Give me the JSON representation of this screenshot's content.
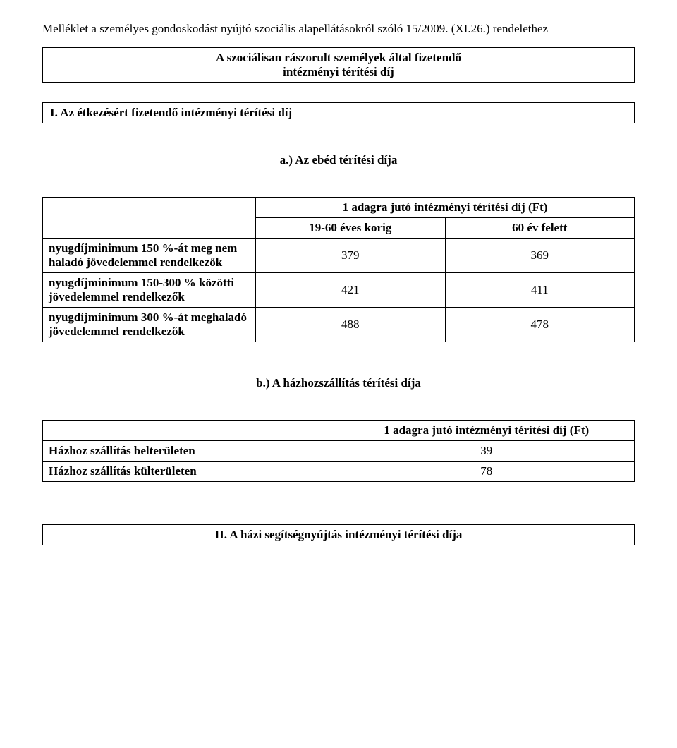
{
  "intro": {
    "line": "Melléklet a személyes gondoskodást nyújtó szociális alapellátásokról szóló 15/2009. (XI.26.) rendelethez"
  },
  "box_title": {
    "line1": "A szociálisan rászorult személyek által fizetendő",
    "line2": "intézményi térítési díj"
  },
  "section_i": {
    "title": "I. Az étkezésért fizetendő intézményi térítési díj"
  },
  "subsection_a": {
    "title": "a.) Az ebéd térítési díja"
  },
  "table_a": {
    "header_span": "1 adagra jutó intézményi térítési díj (Ft)",
    "col1": "19-60 éves korig",
    "col2": "60 év felett",
    "rows": [
      {
        "label": "nyugdíjminimum 150 %-át meg nem haladó jövedelemmel rendelkezők",
        "v1": "379",
        "v2": "369"
      },
      {
        "label": "nyugdíjminimum 150-300 % közötti jövedelemmel rendelkezők",
        "v1": "421",
        "v2": "411"
      },
      {
        "label": "nyugdíjminimum 300 %-át meghaladó jövedelemmel rendelkezők",
        "v1": "488",
        "v2": "478"
      }
    ]
  },
  "subsection_b": {
    "title": "b.) A házhozszállítás térítési díja"
  },
  "table_b": {
    "header": "1 adagra jutó intézményi térítési díj (Ft)",
    "rows": [
      {
        "label": "Házhoz szállítás belterületen",
        "val": "39"
      },
      {
        "label": "Házhoz szállítás külterületen",
        "val": "78"
      }
    ]
  },
  "section_ii": {
    "title": "II. A házi segítségnyújtás intézményi térítési díja"
  }
}
